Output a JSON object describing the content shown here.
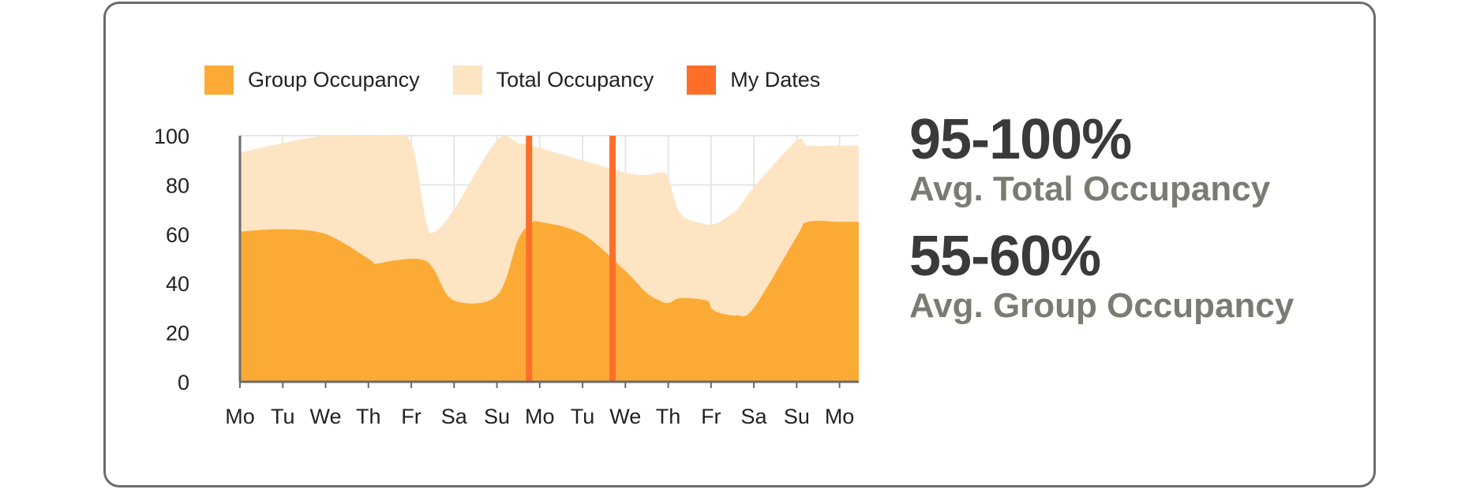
{
  "chart_data": {
    "type": "area",
    "ylim": [
      0,
      100
    ],
    "yticks": [
      0,
      20,
      40,
      60,
      80,
      100
    ],
    "grid": true,
    "legend_position": "top",
    "categories": [
      "Mo",
      "Tu",
      "We",
      "Th",
      "Fr",
      "Sa",
      "Su",
      "Mo",
      "Tu",
      "We",
      "Th",
      "Fr",
      "Sa",
      "Su",
      "Mo"
    ],
    "x": [
      0,
      1,
      2,
      3,
      3.15,
      3.5,
      4,
      4.35,
      4.55,
      5,
      6,
      6.5,
      6.8,
      7,
      8,
      9,
      9.5,
      9.8,
      10,
      10.3,
      10.9,
      11,
      11.2,
      11.6,
      12,
      13,
      13.25,
      14,
      14.45
    ],
    "series": [
      {
        "name": "Total Occupancy",
        "color": "#fde4c3",
        "values": [
          93,
          97,
          100,
          100,
          100,
          100,
          97,
          65,
          61,
          70,
          98,
          97,
          96,
          95,
          90,
          85,
          84,
          85,
          83,
          68,
          64,
          64,
          65,
          70,
          79,
          98,
          96,
          96,
          96
        ]
      },
      {
        "name": "Group Occupancy",
        "color": "#fbab35",
        "values": [
          61,
          62,
          60,
          50,
          48,
          49,
          50,
          49,
          45,
          33,
          35,
          58,
          64,
          65,
          60,
          45,
          36,
          33,
          32,
          34,
          33,
          30,
          28,
          27,
          30,
          59,
          65,
          65,
          65
        ]
      }
    ],
    "markers": {
      "name": "My Dates",
      "color": "#fd6f29",
      "x": [
        6.75,
        8.7
      ]
    }
  },
  "legend": [
    {
      "label": "Group Occupancy",
      "color": "#fbab35"
    },
    {
      "label": "Total Occupancy",
      "color": "#fde4c3"
    },
    {
      "label": "My Dates",
      "color": "#fd6f29"
    }
  ],
  "stats": [
    {
      "value": "95-100%",
      "label": "Avg. Total Occupancy"
    },
    {
      "value": "55-60%",
      "label": "Avg. Group Occupancy"
    }
  ]
}
